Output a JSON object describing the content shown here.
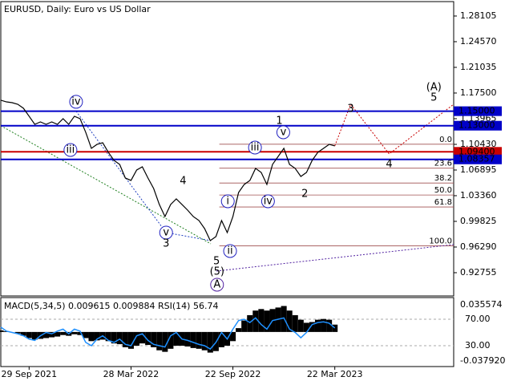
{
  "chart_data": {
    "type": "line",
    "title": "EURUSD, Daily:  Euro vs US Dollar",
    "categories": [
      null,
      null,
      null,
      null,
      null,
      "29 Sep 2021",
      null,
      null,
      null,
      null,
      null,
      null,
      null,
      null,
      null,
      null,
      null,
      null,
      null,
      null,
      null,
      null,
      null,
      "28 Mar 2022",
      null,
      null,
      null,
      null,
      null,
      null,
      null,
      null,
      null,
      null,
      null,
      null,
      null,
      null,
      null,
      null,
      null,
      "22 Sep 2022",
      null,
      null,
      null,
      null,
      null,
      null,
      null,
      null,
      null,
      null,
      null,
      null,
      null,
      null,
      null,
      null,
      null,
      "22 Mar 2023"
    ],
    "xlim": [
      0,
      80
    ],
    "color": "#000000",
    "values": [
      1.1651,
      1.1628,
      1.1617,
      1.1595,
      1.154,
      1.143,
      1.1319,
      1.1352,
      1.1319,
      1.1352,
      1.1319,
      1.1397,
      1.1319,
      1.143,
      1.1397,
      1.1209,
      1.0988,
      1.1043,
      1.1065,
      1.0933,
      1.0822,
      1.0767,
      1.0579,
      1.0546,
      1.069,
      1.0734,
      1.0579,
      1.0435,
      1.0215,
      1.0049,
      1.0215,
      1.0292,
      1.0215,
      1.0137,
      1.0049,
      0.9994,
      0.9883,
      0.9717,
      0.9773,
      0.9994,
      0.9828,
      1.0049,
      1.038,
      1.0491,
      1.0546,
      1.0712,
      1.0656,
      1.0491,
      1.0767,
      1.0877,
      1.0988,
      1.0767,
      1.0712,
      1.0601,
      1.0656,
      1.0822,
      1.0933,
      1.0988,
      1.1043,
      1.1021
    ],
    "ylim": [
      0.8966,
      1.2998
    ],
    "yticks": [
      1.28105,
      {
        "value": 1.2457,
        "label": "1.24570"
      },
      1.21035,
      {
        "value": 1.175,
        "label": "1.17500"
      },
      1.13965,
      {
        "value": 1.1043,
        "label": "1.10430"
      },
      1.06895,
      {
        "value": 1.0336,
        "label": "1.03360"
      },
      0.99825,
      {
        "value": 0.9629,
        "label": "0.96290"
      },
      0.92755
    ],
    "levels": [
      {
        "value": 1.15,
        "label": "1.15000",
        "color": "#0000c8"
      },
      {
        "value": 1.13,
        "label": "1.13000",
        "color": "#0000c8"
      },
      {
        "value": 1.094,
        "label": "1.09400",
        "color": "#c80000"
      },
      {
        "value": 1.08357,
        "label": "1.08357",
        "color": "#0000c8"
      }
    ],
    "fibonacci": {
      "high": 1.1045,
      "low": 0.9646,
      "start": 38.6,
      "color": "#a05050",
      "levels": [
        {
          "value": 0,
          "label": "0.0"
        },
        23.6,
        38.2,
        {
          "value": 50,
          "label": "50.0"
        },
        61.8,
        {
          "value": 100,
          "label": "100.0"
        }
      ]
    },
    "trendlines": [
      {
        "color": "#c80000",
        "points": [
          [
            59,
            1.1021
          ],
          [
            61.8,
            1.1596
          ],
          [
            68.6,
            1.0911
          ],
          [
            80,
            1.1596
          ]
        ]
      },
      {
        "color": "#5020a0",
        "points": [
          [
            38.1,
            0.9298
          ],
          [
            80,
            0.9663
          ]
        ]
      },
      {
        "color": "#208020",
        "points": [
          [
            0,
            1.13
          ],
          [
            37.1,
            0.9673
          ]
        ]
      },
      {
        "color": "#2040c0",
        "points": [
          [
            13.3,
            1.15
          ],
          [
            29.2,
            0.9828
          ],
          [
            37.1,
            0.9717
          ]
        ]
      }
    ],
    "annotations": [
      {
        "text": "iv",
        "x": 13.3,
        "y": 1.1629,
        "style": "circle"
      },
      {
        "text": "iii",
        "x": 12.3,
        "y": 1.0966,
        "style": "circle"
      },
      {
        "text": "v",
        "x": 29.2,
        "y": 0.9828,
        "style": "circle"
      },
      {
        "text": "4",
        "x": 32.2,
        "y": 1.0535,
        "style": "red"
      },
      {
        "text": "3",
        "x": 29.2,
        "y": 0.9673,
        "style": "red"
      },
      {
        "text": "5",
        "x": 38.1,
        "y": 0.943,
        "style": "red"
      },
      {
        "text": "(5)",
        "x": 38.2,
        "y": 0.9286,
        "style": "green"
      },
      {
        "text": "A",
        "x": 38.2,
        "y": 0.911,
        "style": "purple"
      },
      {
        "text": "ii",
        "x": 40.5,
        "y": 0.9574,
        "style": "circle"
      },
      {
        "text": "i",
        "x": 40.1,
        "y": 1.0259,
        "style": "circle"
      },
      {
        "text": "iii",
        "x": 44.9,
        "y": 1.0999,
        "style": "circle"
      },
      {
        "text": "iv",
        "x": 47.2,
        "y": 1.0259,
        "style": "circle"
      },
      {
        "text": "v",
        "x": 49.9,
        "y": 1.1209,
        "style": "circle"
      },
      {
        "text": "1",
        "x": 49.2,
        "y": 1.1363,
        "style": "red"
      },
      {
        "text": "2",
        "x": 53.7,
        "y": 1.0358,
        "style": "red"
      },
      {
        "text": "3",
        "x": 61.8,
        "y": 1.1529,
        "style": "red"
      },
      {
        "text": "4",
        "x": 68.6,
        "y": 1.0767,
        "style": "red"
      },
      {
        "text": "5",
        "x": 76.5,
        "y": 1.1684,
        "style": "red"
      },
      {
        "text": "(A)",
        "x": 76.5,
        "y": 1.1827,
        "style": "green"
      }
    ],
    "indicator": {
      "label": "MACD(5,34,5) 0.009615 0.009884 RSI(14) 56.74",
      "macd_color": "#000000",
      "macd": [
        0.002,
        0.001,
        0.0,
        -0.002,
        -0.005,
        -0.008,
        -0.01,
        -0.009,
        -0.008,
        -0.007,
        -0.006,
        -0.004,
        -0.005,
        -0.003,
        -0.004,
        -0.008,
        -0.012,
        -0.011,
        -0.01,
        -0.012,
        -0.015,
        -0.016,
        -0.02,
        -0.022,
        -0.018,
        -0.015,
        -0.017,
        -0.02,
        -0.024,
        -0.026,
        -0.022,
        -0.018,
        -0.018,
        -0.019,
        -0.021,
        -0.022,
        -0.024,
        -0.027,
        -0.025,
        -0.02,
        -0.018,
        -0.012,
        0.005,
        0.015,
        0.022,
        0.028,
        0.03,
        0.028,
        0.03,
        0.032,
        0.034,
        0.028,
        0.022,
        0.016,
        0.012,
        0.013,
        0.016,
        0.017,
        0.016,
        0.009615
      ],
      "ylim": [
        -0.04422,
        0.04397
      ],
      "yticks": [
        0.035574,
        {
          "value": -0.03792,
          "label": "-0.037920"
        }
      ],
      "rsi_color": "#1e90ff",
      "rsi": [
        58,
        52,
        50,
        48,
        45,
        40,
        38,
        45,
        50,
        48,
        52,
        55,
        48,
        55,
        52,
        35,
        30,
        40,
        45,
        38,
        35,
        40,
        32,
        30,
        45,
        48,
        38,
        32,
        30,
        28,
        45,
        50,
        40,
        38,
        35,
        32,
        30,
        25,
        35,
        50,
        40,
        55,
        68,
        70,
        65,
        72,
        62,
        55,
        68,
        70,
        72,
        55,
        50,
        42,
        50,
        62,
        65,
        66,
        64,
        56.74
      ],
      "y2lim": [
        -0.3,
        101.5
      ],
      "y2ticks": [
        {
          "value": 70,
          "label": "70.00"
        },
        {
          "value": 30,
          "label": "30.00"
        }
      ]
    }
  }
}
